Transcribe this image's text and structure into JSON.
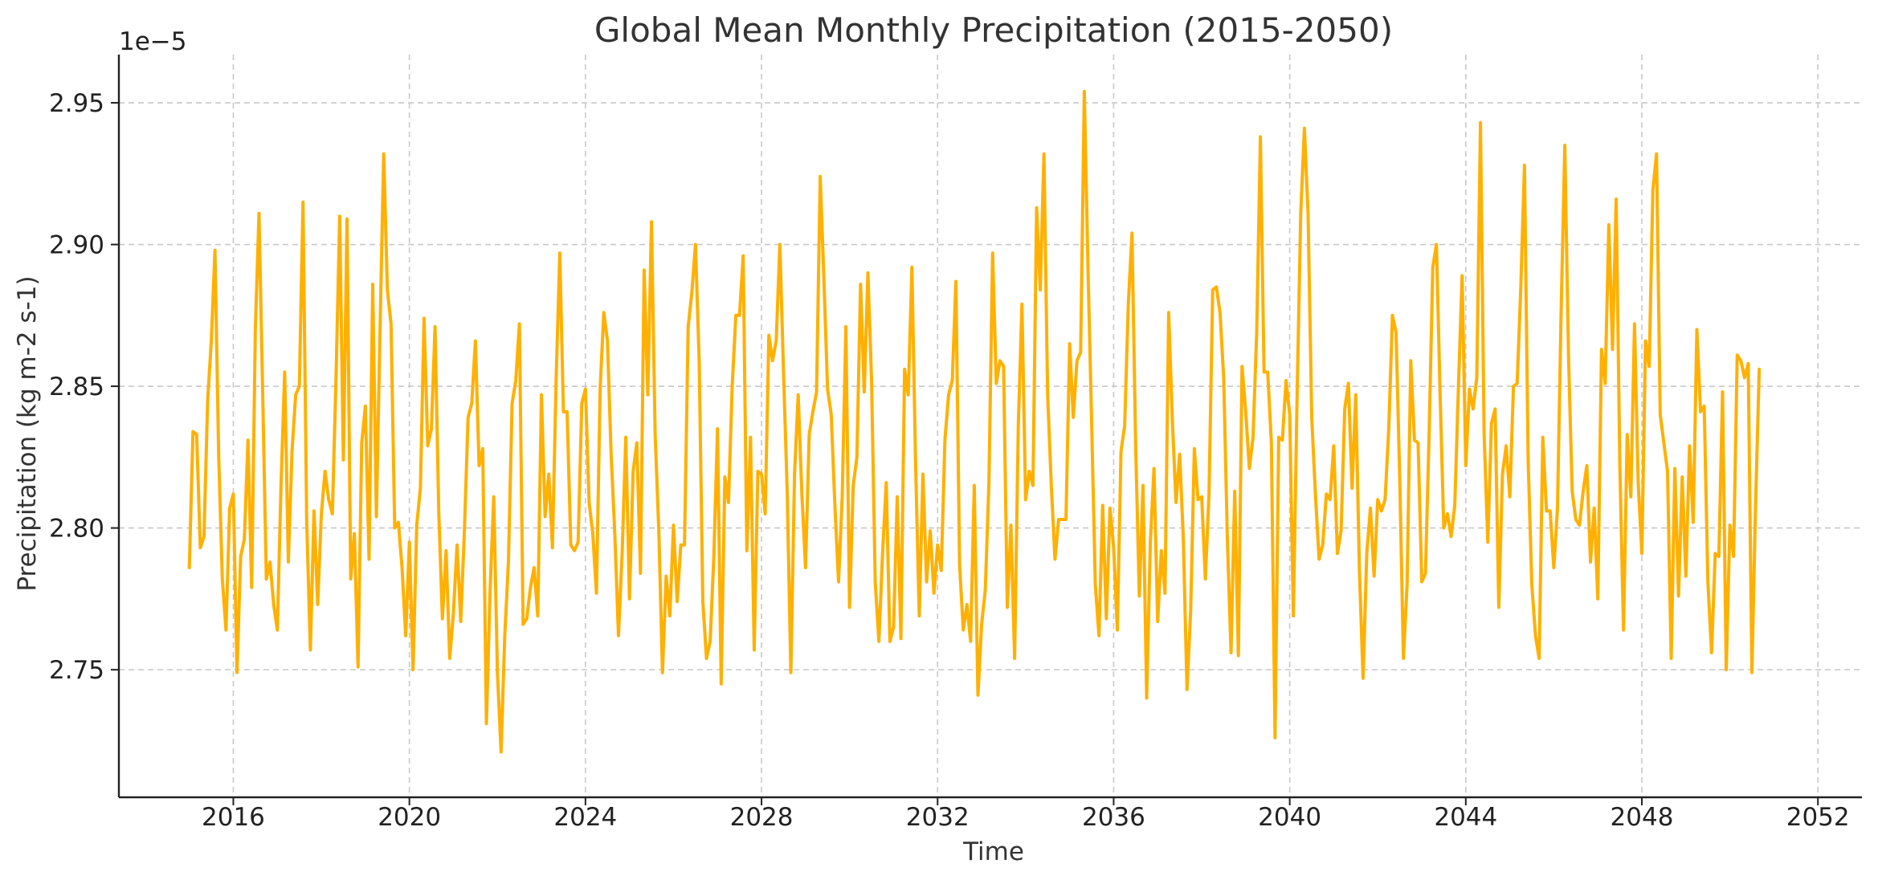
{
  "chart_data": {
    "type": "line",
    "title": "Global Mean Monthly Precipitation (2015-2050)",
    "xlabel": "Time",
    "ylabel": "Precipitation (kg m-2 s-1)",
    "y_offset_label": "1e−5",
    "y_scale_note": "values scaled by 1e-5",
    "line_color": "#FFB000",
    "grid": true,
    "xlim": [
      2013.4,
      2053.0
    ],
    "ylim": [
      2.705,
      2.967
    ],
    "x_ticks": [
      2016,
      2020,
      2024,
      2028,
      2032,
      2036,
      2040,
      2044,
      2048,
      2052
    ],
    "x_tick_labels": [
      "2016",
      "2020",
      "2024",
      "2028",
      "2032",
      "2036",
      "2040",
      "2044",
      "2048",
      "2052"
    ],
    "y_ticks": [
      2.75,
      2.8,
      2.85,
      2.9,
      2.95
    ],
    "y_tick_labels": [
      "2.75",
      "2.80",
      "2.85",
      "2.90",
      "2.95"
    ],
    "series": [
      {
        "x_start": "2015-01",
        "x_step": "1 month",
        "values": [
          2.786,
          2.834,
          2.833,
          2.793,
          2.797,
          2.845,
          2.866,
          2.898,
          2.826,
          2.782,
          2.764,
          2.807,
          2.812,
          2.749,
          2.79,
          2.796,
          2.831,
          2.779,
          2.87,
          2.911,
          2.848,
          2.782,
          2.788,
          2.773,
          2.764,
          2.815,
          2.855,
          2.788,
          2.827,
          2.847,
          2.85,
          2.915,
          2.803,
          2.757,
          2.806,
          2.773,
          2.805,
          2.82,
          2.81,
          2.805,
          2.853,
          2.91,
          2.824,
          2.909,
          2.782,
          2.798,
          2.751,
          2.83,
          2.843,
          2.789,
          2.886,
          2.804,
          2.87,
          2.932,
          2.884,
          2.872,
          2.8,
          2.802,
          2.786,
          2.762,
          2.795,
          2.75,
          2.801,
          2.814,
          2.874,
          2.829,
          2.835,
          2.871,
          2.806,
          2.768,
          2.792,
          2.754,
          2.77,
          2.794,
          2.767,
          2.799,
          2.839,
          2.844,
          2.866,
          2.822,
          2.828,
          2.731,
          2.778,
          2.811,
          2.749,
          2.721,
          2.762,
          2.788,
          2.844,
          2.852,
          2.872,
          2.766,
          2.768,
          2.779,
          2.786,
          2.769,
          2.847,
          2.804,
          2.819,
          2.793,
          2.852,
          2.897,
          2.841,
          2.841,
          2.794,
          2.792,
          2.795,
          2.844,
          2.849,
          2.809,
          2.798,
          2.777,
          2.849,
          2.876,
          2.866,
          2.826,
          2.798,
          2.762,
          2.791,
          2.832,
          2.775,
          2.82,
          2.83,
          2.784,
          2.891,
          2.847,
          2.908,
          2.833,
          2.799,
          2.749,
          2.783,
          2.769,
          2.801,
          2.774,
          2.794,
          2.794,
          2.871,
          2.883,
          2.9,
          2.859,
          2.774,
          2.754,
          2.76,
          2.79,
          2.835,
          2.745,
          2.818,
          2.809,
          2.85,
          2.875,
          2.875,
          2.896,
          2.792,
          2.832,
          2.757,
          2.82,
          2.819,
          2.805,
          2.868,
          2.859,
          2.866,
          2.9,
          2.855,
          2.813,
          2.749,
          2.819,
          2.847,
          2.812,
          2.786,
          2.833,
          2.841,
          2.848,
          2.924,
          2.888,
          2.849,
          2.84,
          2.808,
          2.781,
          2.811,
          2.871,
          2.772,
          2.815,
          2.825,
          2.886,
          2.848,
          2.89,
          2.852,
          2.781,
          2.76,
          2.791,
          2.816,
          2.76,
          2.765,
          2.811,
          2.761,
          2.856,
          2.847,
          2.892,
          2.823,
          2.769,
          2.819,
          2.781,
          2.799,
          2.777,
          2.794,
          2.785,
          2.831,
          2.847,
          2.852,
          2.887,
          2.787,
          2.764,
          2.773,
          2.76,
          2.815,
          2.741,
          2.766,
          2.778,
          2.816,
          2.897,
          2.851,
          2.859,
          2.857,
          2.772,
          2.801,
          2.754,
          2.836,
          2.879,
          2.81,
          2.82,
          2.815,
          2.913,
          2.884,
          2.932,
          2.847,
          2.815,
          2.789,
          2.803,
          2.803,
          2.803,
          2.865,
          2.839,
          2.859,
          2.862,
          2.954,
          2.892,
          2.837,
          2.78,
          2.762,
          2.808,
          2.768,
          2.807,
          2.793,
          2.764,
          2.827,
          2.836,
          2.879,
          2.904,
          2.829,
          2.776,
          2.815,
          2.74,
          2.795,
          2.821,
          2.767,
          2.792,
          2.777,
          2.876,
          2.838,
          2.809,
          2.826,
          2.796,
          2.743,
          2.771,
          2.828,
          2.81,
          2.811,
          2.782,
          2.812,
          2.884,
          2.885,
          2.876,
          2.853,
          2.796,
          2.756,
          2.813,
          2.755,
          2.857,
          2.841,
          2.821,
          2.832,
          2.869,
          2.938,
          2.855,
          2.855,
          2.83,
          2.726,
          2.832,
          2.831,
          2.852,
          2.84,
          2.769,
          2.846,
          2.911,
          2.941,
          2.911,
          2.839,
          2.812,
          2.789,
          2.794,
          2.812,
          2.81,
          2.829,
          2.791,
          2.799,
          2.842,
          2.851,
          2.814,
          2.847,
          2.785,
          2.747,
          2.791,
          2.807,
          2.783,
          2.81,
          2.806,
          2.81,
          2.835,
          2.875,
          2.869,
          2.817,
          2.754,
          2.78,
          2.859,
          2.831,
          2.83,
          2.781,
          2.784,
          2.833,
          2.892,
          2.9,
          2.847,
          2.8,
          2.805,
          2.797,
          2.808,
          2.85,
          2.889,
          2.822,
          2.849,
          2.842,
          2.853,
          2.943,
          2.833,
          2.795,
          2.837,
          2.842,
          2.772,
          2.819,
          2.829,
          2.811,
          2.85,
          2.851,
          2.885,
          2.928,
          2.824,
          2.78,
          2.762,
          2.754,
          2.832,
          2.806,
          2.806,
          2.786,
          2.807,
          2.877,
          2.935,
          2.861,
          2.813,
          2.803,
          2.801,
          2.813,
          2.822,
          2.788,
          2.807,
          2.775,
          2.863,
          2.851,
          2.907,
          2.863,
          2.916,
          2.822,
          2.764,
          2.833,
          2.811,
          2.872,
          2.816,
          2.791,
          2.866,
          2.857,
          2.919,
          2.932,
          2.84,
          2.83,
          2.82,
          2.754,
          2.821,
          2.776,
          2.818,
          2.783,
          2.829,
          2.802,
          2.87,
          2.841,
          2.843,
          2.781,
          2.756,
          2.791,
          2.79,
          2.848,
          2.75,
          2.801,
          2.79,
          2.861,
          2.859,
          2.853,
          2.858,
          2.749,
          2.808,
          2.856
        ]
      }
    ]
  }
}
